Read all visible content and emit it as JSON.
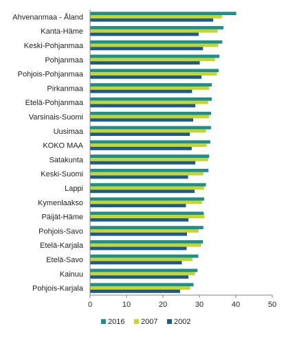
{
  "chart_data": {
    "type": "bar",
    "orientation": "horizontal",
    "categories": [
      "Ahvenanmaa - Åland",
      "Kanta-Häme",
      "Keski-Pohjanmaa",
      "Pohjanmaa",
      "Pohjois-Pohjanmaa",
      "Pirkanmaa",
      "Etelä-Pohjanmaa",
      "Varsinais-Suomi",
      "Uusimaa",
      "KOKO MAA",
      "Satakunta",
      "Keski-Suomi",
      "Lappi",
      "Kymenlaakso",
      "Päijät-Häme",
      "Pohjois-Savo",
      "Etelä-Karjala",
      "Etelä-Savo",
      "Kainuu",
      "Pohjois-Karjala"
    ],
    "series": [
      {
        "name": "2016",
        "color": "#1f8f8a",
        "values": [
          40.1,
          36.6,
          36.3,
          35.5,
          35.3,
          33.4,
          33.4,
          33.2,
          33.2,
          33.0,
          32.7,
          32.5,
          31.8,
          31.3,
          31.2,
          31.1,
          31.0,
          29.7,
          29.5,
          28.4
        ]
      },
      {
        "name": "2007",
        "color": "#c4d62c",
        "values": [
          36.2,
          35.0,
          35.2,
          34.3,
          34.8,
          32.7,
          32.4,
          32.7,
          31.8,
          32.0,
          32.4,
          31.1,
          31.3,
          30.7,
          31.4,
          29.8,
          30.5,
          28.1,
          28.8,
          27.5
        ]
      },
      {
        "name": "2002",
        "color": "#1f5a8e",
        "values": [
          33.8,
          29.8,
          31.0,
          30.1,
          30.6,
          28.0,
          28.9,
          28.3,
          27.4,
          27.9,
          28.9,
          26.9,
          28.7,
          26.3,
          27.0,
          26.6,
          26.5,
          25.2,
          27.0,
          24.7
        ]
      }
    ],
    "xlim": [
      0,
      50
    ],
    "xticks": [
      "0",
      "10",
      "20",
      "30",
      "40",
      "50"
    ],
    "legend_position": "bottom",
    "grid": false
  }
}
